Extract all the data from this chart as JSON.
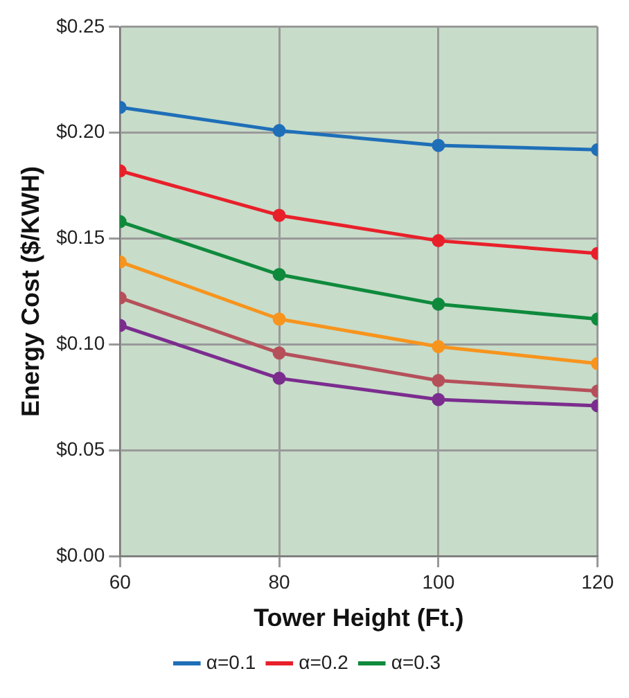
{
  "chart_data": {
    "type": "line",
    "xlabel": "Tower Height (Ft.)",
    "ylabel": "Energy Cost ($/KWH)",
    "x": [
      60,
      80,
      100,
      120
    ],
    "series": [
      {
        "name": "α=0.1",
        "color": "#1f6fb8",
        "values": [
          0.212,
          0.201,
          0.194,
          0.192
        ]
      },
      {
        "name": "α=0.2",
        "color": "#e8202a",
        "values": [
          0.182,
          0.161,
          0.149,
          0.143
        ]
      },
      {
        "name": "α=0.3",
        "color": "#0f8a3c",
        "values": [
          0.158,
          0.133,
          0.119,
          0.112
        ]
      },
      {
        "color": "#f7941d",
        "values": [
          0.139,
          0.112,
          0.099,
          0.091
        ]
      },
      {
        "color": "#b5505a",
        "values": [
          0.122,
          0.096,
          0.083,
          0.078
        ]
      },
      {
        "color": "#7b2d8e",
        "values": [
          0.109,
          0.084,
          0.074,
          0.071
        ]
      }
    ],
    "xlim": [
      60,
      120
    ],
    "xticks": [
      60,
      80,
      100,
      120
    ],
    "ylim": [
      0,
      0.25
    ],
    "yticks": [
      {
        "value": 0,
        "label": "$0.00"
      },
      {
        "value": 0.05,
        "label": "$0.05"
      },
      {
        "value": 0.1,
        "label": "$0.10"
      },
      {
        "value": 0.15,
        "label": "$0.15"
      },
      {
        "value": 0.2,
        "label": "$0.20"
      },
      {
        "value": 0.25,
        "label": "$0.25"
      }
    ],
    "grid": true,
    "legend": "bottom",
    "marker": "circle",
    "line_style": "solid"
  }
}
